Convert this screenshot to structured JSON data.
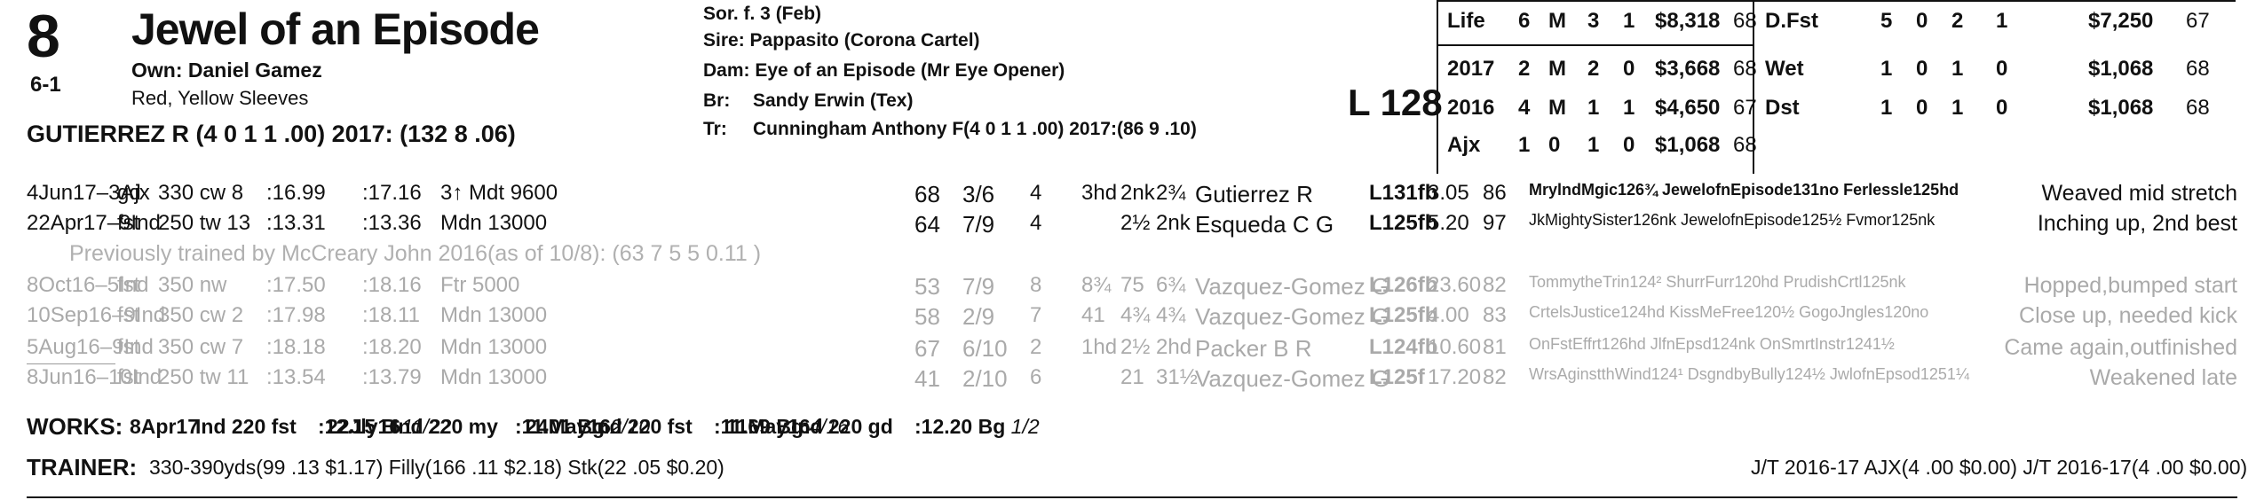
{
  "horse": {
    "post_position": "8",
    "odds": "6-1",
    "name": "Jewel of an Episode",
    "owner": "Own: Daniel Gamez",
    "silks": "Red, Yellow Sleeves",
    "jockey": "GUTIERREZ R (4 0 1 1 .00) 2017: (132 8 .06)"
  },
  "pedigree": {
    "sex_age": "Sor. f. 3 (Feb)",
    "sire": "Sire: Pappasito (Corona Cartel)",
    "dam": "Dam: Eye of an Episode (Mr Eye Opener)",
    "breeder_label": "Br:",
    "breeder": "Sandy Erwin (Tex)",
    "trainer_label": "Tr:",
    "trainer": "Cunningham Anthony F(4 0 1 1 .00)  2017:(86 9 .10)"
  },
  "weight": "L 128",
  "records_left": [
    {
      "label": "Life",
      "starts": "6",
      "m": "M",
      "w": "3",
      "p": "1",
      "earn": "$8,318",
      "spd": "68"
    },
    {
      "label": "2017",
      "starts": "2",
      "m": "M",
      "w": "2",
      "p": "0",
      "earn": "$3,668",
      "spd": "68"
    },
    {
      "label": "2016",
      "starts": "4",
      "m": "M",
      "w": "1",
      "p": "1",
      "earn": "$4,650",
      "spd": "67"
    },
    {
      "label": "Ajx",
      "starts": "1",
      "m": "0",
      "w": "1",
      "p": "0",
      "earn": "$1,068",
      "spd": "68"
    }
  ],
  "records_right": [
    {
      "label": "D.Fst",
      "starts": "5",
      "m": "0",
      "w": "2",
      "p": "1",
      "earn": "$7,250",
      "spd": "67"
    },
    {
      "label": "Wet",
      "starts": "1",
      "m": "0",
      "w": "1",
      "p": "0",
      "earn": "$1,068",
      "spd": "68"
    },
    {
      "label": "Dst",
      "starts": "1",
      "m": "0",
      "w": "1",
      "p": "0",
      "earn": "$1,068",
      "spd": "68"
    }
  ],
  "past_performances": [
    {
      "date": "4Jun17–3Ajx",
      "cond": "gd",
      "dist": "330 cw 8",
      "t1": ":16.99",
      "t2": ":17.16",
      "race": "3↑ Mdt 9600",
      "spd": "68",
      "pp": "3/6",
      "st": "4",
      "c1": "3hd",
      "c2": "2nk",
      "fin": "2¾",
      "jockey": "Gutierrez R",
      "wt": "L131fb",
      "odds": "3.05",
      "sr": "86",
      "comp": "MrylndMgic126¾ JewelofnEpisode131no Ferlessle125hd",
      "comment": "Weaved mid stretch",
      "faded": false
    },
    {
      "date": "22Apr17–9Ind",
      "cond": "fst",
      "dist": "250 tw 13",
      "t1": ":13.31",
      "t2": ":13.36",
      "race": "Mdn 13000",
      "spd": "64",
      "pp": "7/9",
      "st": "4",
      "c1": "",
      "c2": "2½",
      "fin": "2nk",
      "jockey": "Esqueda C G",
      "wt": "L125fb",
      "odds": "5.20",
      "sr": "97",
      "comp": "JkMightySister126nk JewelofnEpisode125½ Fvmor125nk",
      "comment": "Inching up, 2nd best",
      "faded": false
    },
    {
      "date": "8Oct16–5Ind",
      "cond": "fst",
      "dist": "350 nw",
      "t1": ":17.50",
      "t2": ":18.16",
      "race": "Ftr 5000",
      "spd": "53",
      "pp": "7/9",
      "st": "8",
      "c1": "8¾",
      "c2": "75",
      "fin": "6¾",
      "jockey": "Vazquez-Gomez G",
      "wt": "L126fb",
      "odds": "23.60",
      "sr": "82",
      "comp": "TommytheTrin124² ShurrFurr120hd PrudishCrtl125nk",
      "comment": "Hopped,bumped start",
      "faded": true
    },
    {
      "date": "10Sep16–9Ind",
      "cond": "fst",
      "dist": "350 cw 2",
      "t1": ":17.98",
      "t2": ":18.11",
      "race": "Mdn 13000",
      "spd": "58",
      "pp": "2/9",
      "st": "7",
      "c1": "41",
      "c2": "4¾",
      "fin": "4¾",
      "jockey": "Vazquez-Gomez G",
      "wt": "L125fb",
      "odds": "4.00",
      "sr": "83",
      "comp": "CrtelsJustice124hd KissMeFree120½ GogoJngles120no",
      "comment": "Close up, needed kick",
      "faded": true
    },
    {
      "date": "5Aug16–9Ind",
      "cond": "fst",
      "dist": "350 cw 7",
      "t1": ":18.18",
      "t2": ":18.20",
      "race": "Mdn 13000",
      "spd": "67",
      "pp": "6/10",
      "st": "2",
      "c1": "1hd",
      "c2": "2½",
      "fin": "2hd",
      "jockey": "Packer B R",
      "wt": "L124fb",
      "odds": "10.60",
      "sr": "81",
      "comp": "OnFstEffrt126hd JlfnEpsd124nk OnSmrtInstr1241½",
      "comment": "Came again,outfinished",
      "faded": true
    },
    {
      "date": "8Jun16–10Ind",
      "cond": "fst",
      "dist": "250 tw 11",
      "t1": ":13.54",
      "t2": ":13.79",
      "race": "Mdn 13000",
      "spd": "41",
      "pp": "2/10",
      "st": "6",
      "c1": "",
      "c2": "21",
      "fin": "31½",
      "jockey": "Vazquez-Gomez G",
      "wt": "L125f",
      "odds": "17.20",
      "sr": "82",
      "comp": "WrsAginstthWind124¹ DsgndbyBully124½ JwlofnEpsod1251¼",
      "comment": "Weakened late",
      "faded": true
    }
  ],
  "previous_trainer": "Previously trained by McCreary John 2016(as of 10/8): (63 7 5 5 0.11 )",
  "works": {
    "label": "WORKS:",
    "items": [
      {
        "date": "8Apr17",
        "track": "Ind 220 fst",
        "time": ":12.15 B",
        "rank": "11/22"
      },
      {
        "date": "22Jly16",
        "track": "Ind 220 my",
        "time": ":11.01 Bg",
        "rank": "2/10"
      },
      {
        "date": "24May16",
        "track": "Ind 220 fst",
        "time": ":11.69 Bg",
        "rank": "4/16"
      },
      {
        "date": "11May16",
        "track": "Ind 220 gd",
        "time": ":12.20 Bg",
        "rank": "1/2"
      }
    ]
  },
  "trainer_stats": {
    "label": "TRAINER:",
    "text": "330-390yds(99 .13 $1.17) Filly(166 .11 $2.18) Stk(22 .05 $0.20)",
    "jt": "J/T 2016-17 AJX(4 .00 $0.00)  J/T 2016-17(4 .00 $0.00)"
  }
}
